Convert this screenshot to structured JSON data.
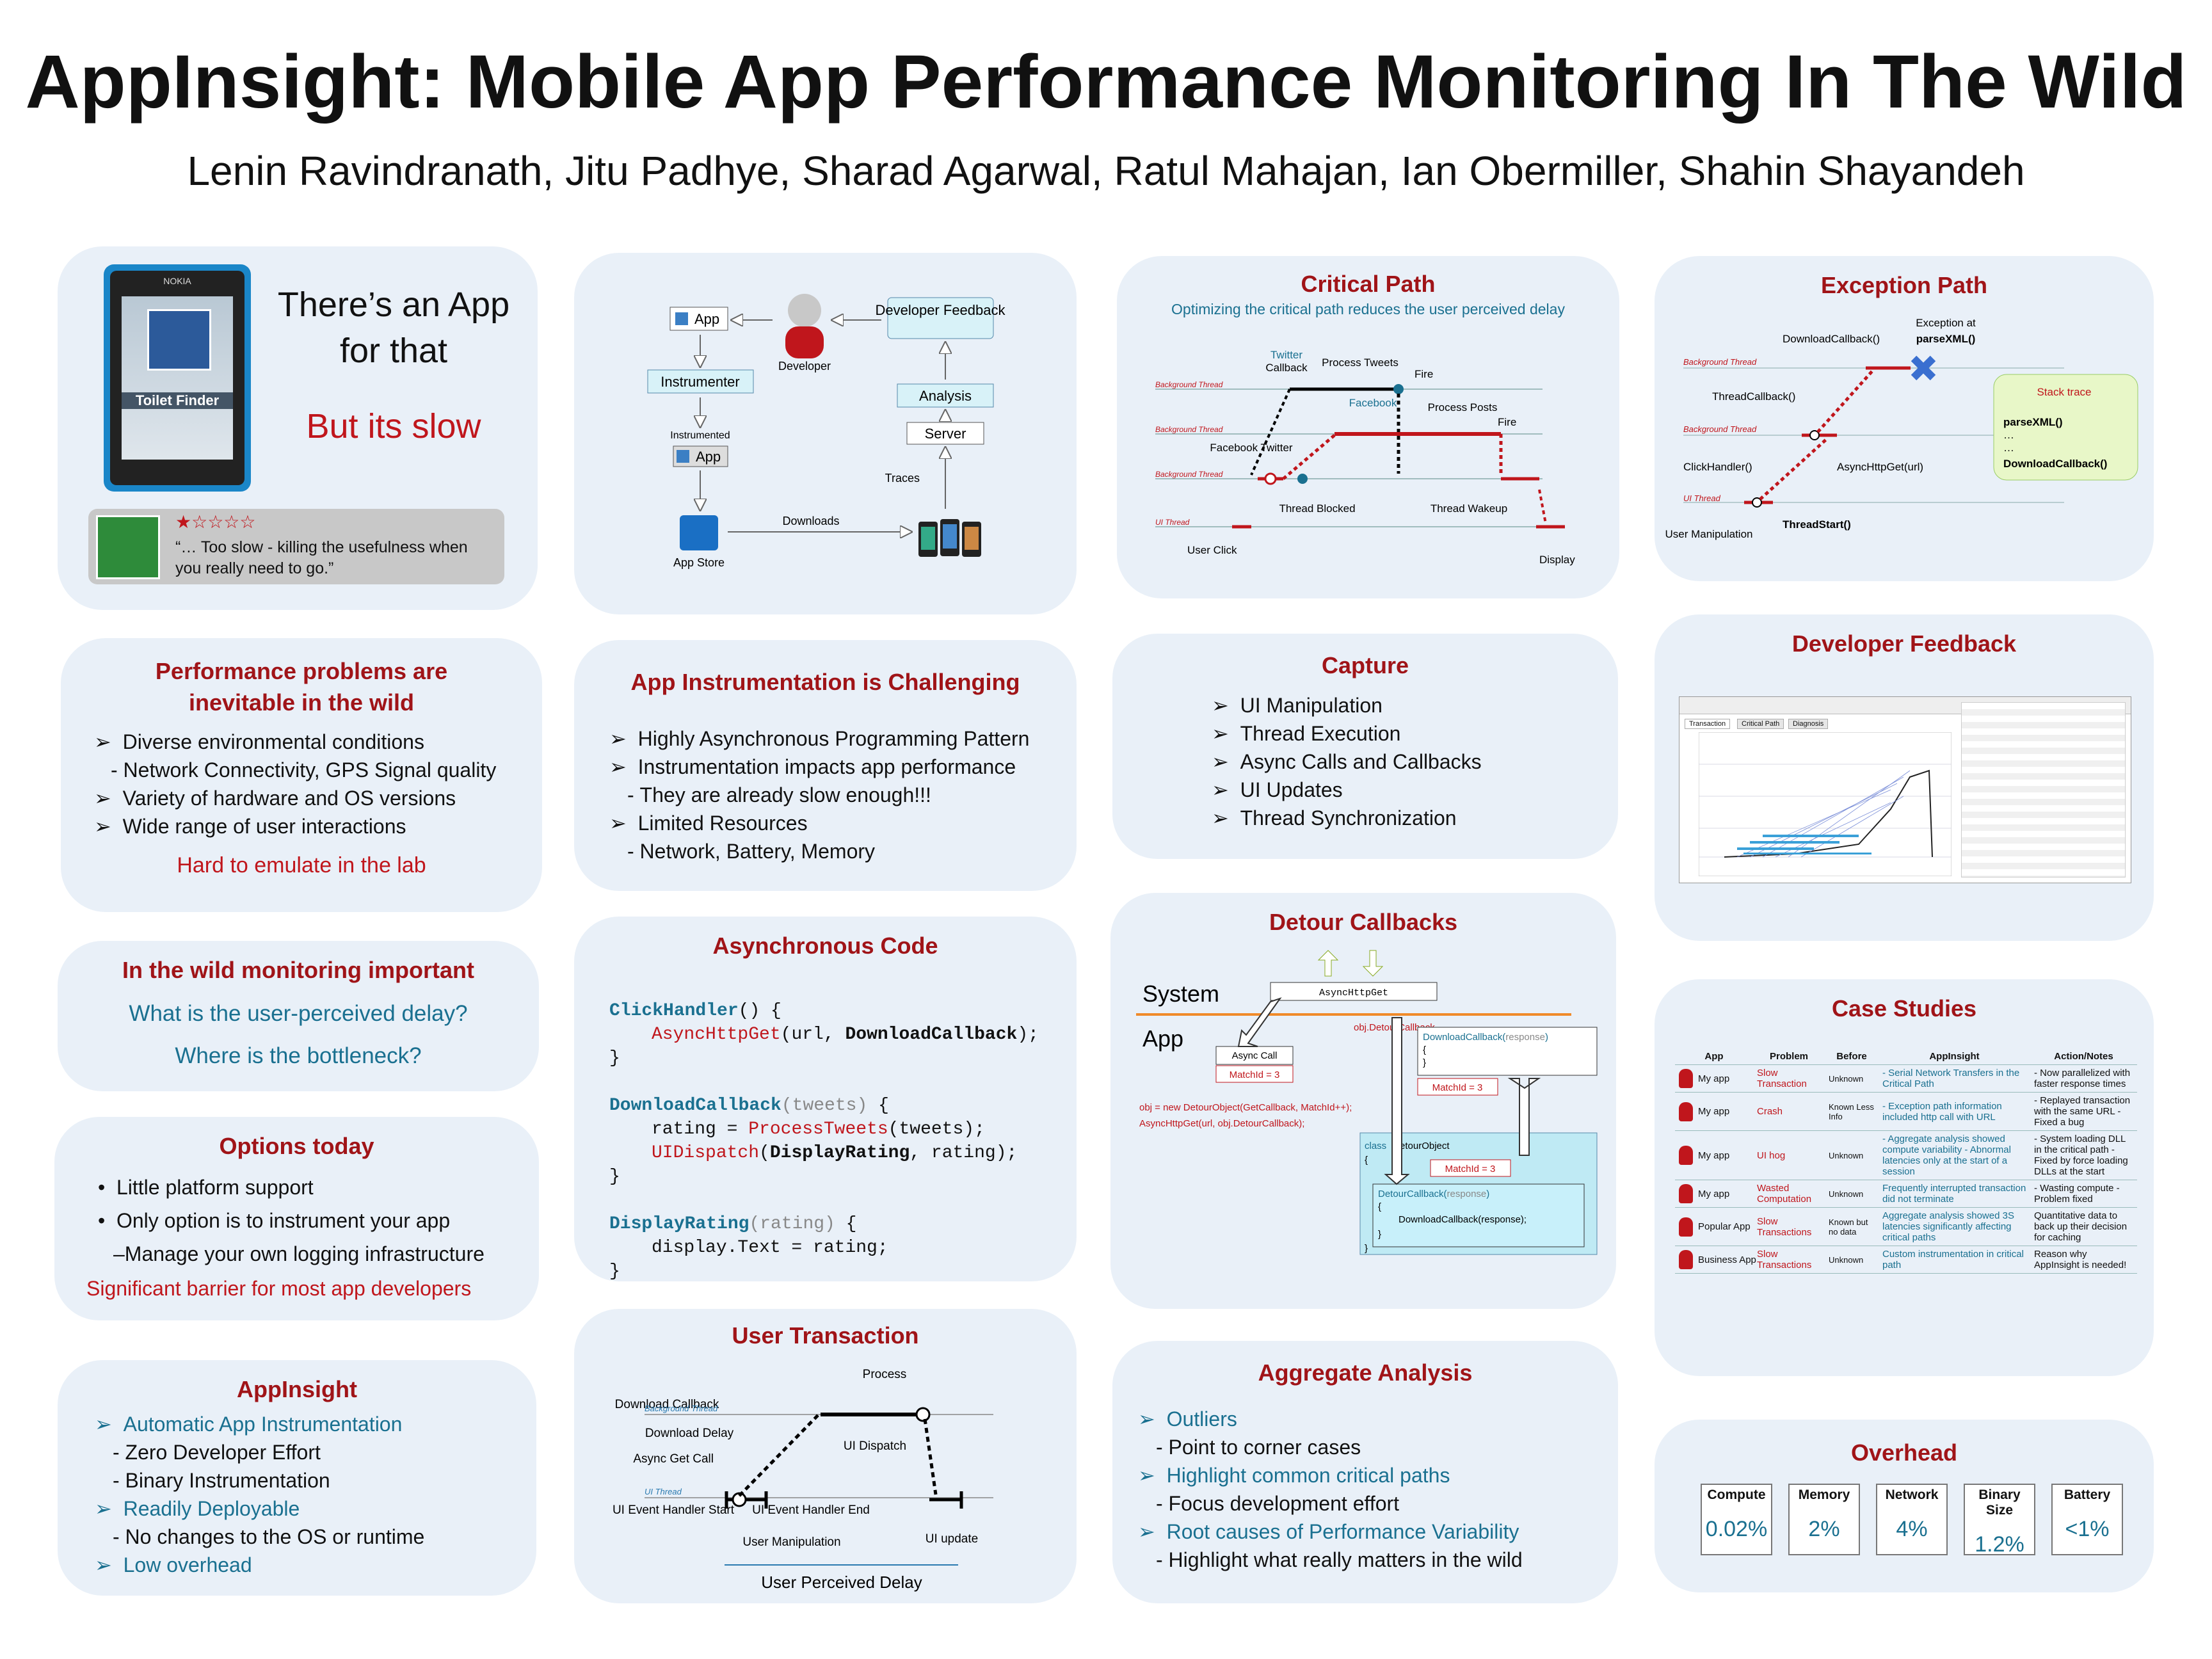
{
  "header": {
    "title": "AppInsight: Mobile App Performance Monitoring In The Wild",
    "authors": "Lenin Ravindranath, Jitu Padhye, Sharad Agarwal, Ratul Mahajan, Ian Obermiller, Shahin Shayandeh"
  },
  "intro": {
    "phone_brand": "NOKIA",
    "app_name": "Toilet Finder",
    "tagline_1": "There’s an App",
    "tagline_2": "for that",
    "tagline_3": "But its slow",
    "stars": "★☆☆☆☆",
    "review": "“… Too slow - killing the usefulness when you really need to go.”"
  },
  "pipeline": {
    "app": "App",
    "developer": "Developer",
    "feedback": "Developer Feedback",
    "instrumenter": "Instrumenter",
    "instrumented": "Instrumented",
    "instr_app": "App",
    "analysis": "Analysis",
    "server": "Server",
    "traces": "Traces",
    "downloads": "Downloads",
    "app_store": "App Store"
  },
  "critical_path": {
    "title": "Critical Path",
    "subtitle": "Optimizing the critical path reduces the user perceived delay",
    "bg_thread": "Background Thread",
    "ui_thread": "UI Thread",
    "twitter": "Twitter",
    "callback": "Callback",
    "process_tweets": "Process Tweets",
    "fire": "Fire",
    "facebook": "Facebook",
    "process_posts": "Process Posts",
    "facebook_twitter": "Facebook Twitter",
    "thread_blocked": "Thread Blocked",
    "thread_wakeup": "Thread Wakeup",
    "user_click": "User Click",
    "display": "Display"
  },
  "exception_path": {
    "title": "Exception Path",
    "download_callback": "DownloadCallback()",
    "exception_at": "Exception at",
    "parse_xml": "parseXML()",
    "bg_thread": "Background Thread",
    "thread_callback": "ThreadCallback()",
    "async_http": "AsyncHttpGet(url)",
    "click_handler": "ClickHandler()",
    "ui_thread": "UI Thread",
    "thread_start": "ThreadStart()",
    "user_manip": "User Manipulation",
    "stack_title": "Stack trace",
    "stack_1": "parseXML()",
    "stack_2": "…",
    "stack_3": "…",
    "stack_4": "DownloadCallback()"
  },
  "perf_problems": {
    "title": "Performance problems are inevitable in the wild",
    "items": [
      {
        "bullet": "➢",
        "text": "Diverse environmental conditions"
      },
      {
        "bullet": "-",
        "text": "Network Connectivity, GPS Signal quality"
      },
      {
        "bullet": "➢",
        "text": "Variety of hardware and OS versions"
      },
      {
        "bullet": "➢",
        "text": "Wide range of user interactions"
      }
    ],
    "footer": "Hard to emulate in the lab"
  },
  "instrumentation": {
    "title": "App Instrumentation is Challenging",
    "items": [
      {
        "bullet": "➢",
        "text": "Highly Asynchronous Programming Pattern"
      },
      {
        "bullet": "➢",
        "text": "Instrumentation impacts app performance"
      },
      {
        "bullet": "-",
        "text": "They are already slow enough!!!"
      },
      {
        "bullet": "➢",
        "text": "Limited Resources"
      },
      {
        "bullet": "-",
        "text": "Network, Battery, Memory"
      }
    ]
  },
  "capture": {
    "title": "Capture",
    "items": [
      "UI Manipulation",
      "Thread Execution",
      "Async Calls and Callbacks",
      "UI Updates",
      "Thread Synchronization"
    ]
  },
  "dev_feedback": {
    "title": "Developer Feedback",
    "tab_1": "Transaction",
    "tab_2": "Critical Path",
    "tab_3": "Diagnosis"
  },
  "wild_monitoring": {
    "title": "In the wild monitoring important",
    "q1": "What is the user-perceived delay?",
    "q2": "Where is the bottleneck?"
  },
  "async_code": {
    "title": "Asynchronous Code",
    "l1a": "ClickHandler",
    "l1b": "() {",
    "l2a": "AsyncHttpGet",
    "l2b": "(url, ",
    "l2c": "DownloadCallback",
    "l2d": ");",
    "l3": "}",
    "l4a": "DownloadCallback",
    "l4b": "(tweets)",
    "l4c": " {",
    "l5a": "rating = ",
    "l5b": "ProcessTweets",
    "l5c": "(tweets);",
    "l6a": "UIDispatch",
    "l6b": "(",
    "l6c": "DisplayRating",
    "l6d": ", rating);",
    "l7": "}",
    "l8a": "DisplayRating",
    "l8b": "(rating)",
    "l8c": " {",
    "l9": "display.Text = rating;",
    "l10": "}"
  },
  "options": {
    "title": "Options today",
    "items": [
      {
        "bullet": "•",
        "text": "Little platform support"
      },
      {
        "bullet": "•",
        "text": "Only option is to instrument your app"
      },
      {
        "bullet": "–",
        "text": "Manage your own logging infrastructure"
      }
    ],
    "footer": "Significant barrier for most app developers"
  },
  "detour": {
    "title": "Detour Callbacks",
    "system": "System",
    "app": "App",
    "async_get": "AsyncHttpGet",
    "obj_detour": "obj.DetourCallback",
    "async_call": "Async Call",
    "matchid": "MatchId = 3",
    "dl_callback": "DownloadCallback(",
    "response": "response",
    "close_paren": ")",
    "brace_open": "{",
    "brace_close": "}",
    "code_1": "obj = new DetourObject(GetCallback, MatchId++);",
    "code_2": "AsyncHttpGet(url, obj.DetourCallback);",
    "class_kw": "class",
    "detour_object": "DetourObject",
    "detour_cb": "DetourCallback(",
    "detour_body": "DownloadCallback(response);"
  },
  "case_studies": {
    "title": "Case Studies",
    "headers": [
      "App",
      "Problem",
      "Before",
      "AppInsight",
      "Action/Notes"
    ],
    "rows": [
      {
        "app": "My app",
        "problem": "Slow Transaction",
        "before": "Unknown",
        "insight": "- Serial Network Transfers in the Critical Path",
        "notes": "- Now parallelized with faster response times"
      },
      {
        "app": "My app",
        "problem": "Crash",
        "before": "Known Less Info",
        "insight": "- Exception path information included http call with URL",
        "notes": "- Replayed transaction with the same URL - Fixed a bug"
      },
      {
        "app": "My app",
        "problem": "UI hog",
        "before": "Unknown",
        "insight": "- Aggregate analysis showed compute variability - Abnormal latencies only at the start of a session",
        "notes": "- System loading DLL in the critical path - Fixed by force loading DLLs at the start"
      },
      {
        "app": "My app",
        "problem": "Wasted Computation",
        "before": "Unknown",
        "insight": "Frequently interrupted transaction did not terminate",
        "notes": "- Wasting compute - Problem fixed"
      },
      {
        "app": "Popular App",
        "problem": "Slow Transactions",
        "before": "Known but no data",
        "insight": "Aggregate analysis showed 3S latencies significantly affecting critical paths",
        "notes": "Quantitative data to back up their decision for caching"
      },
      {
        "app": "Business App",
        "problem": "Slow Transactions",
        "before": "Unknown",
        "insight": "Custom instrumentation in critical path",
        "notes": "Reason why AppInsight is needed!"
      }
    ]
  },
  "appinsight": {
    "title": "AppInsight",
    "items": [
      {
        "bullet": "➢",
        "text": "Automatic App Instrumentation",
        "kind": "head"
      },
      {
        "bullet": "-",
        "text": "Zero Developer Effort",
        "kind": "sub"
      },
      {
        "bullet": "-",
        "text": "Binary Instrumentation",
        "kind": "sub"
      },
      {
        "bullet": "➢",
        "text": "Readily Deployable",
        "kind": "head"
      },
      {
        "bullet": "-",
        "text": "No changes to the OS or runtime",
        "kind": "sub"
      },
      {
        "bullet": "➢",
        "text": "Low overhead",
        "kind": "head"
      }
    ]
  },
  "user_transaction": {
    "title": "User Transaction",
    "download_callback": "Download Callback",
    "process": "Process",
    "bg_thread": "Background Thread",
    "download_delay": "Download Delay",
    "ui_dispatch": "UI Dispatch",
    "async_get_call": "Async Get Call",
    "ui_thread": "UI Thread",
    "ui_event_start": "UI Event Handler Start",
    "ui_event_end": "UI Event Handler End",
    "user_manip": "User Manipulation",
    "ui_update": "UI update",
    "perceived": "User Perceived Delay"
  },
  "aggregate": {
    "title": "Aggregate Analysis",
    "items": [
      {
        "bullet": "➢",
        "text": "Outliers",
        "kind": "head"
      },
      {
        "bullet": "-",
        "text": "Point to corner cases",
        "kind": "sub"
      },
      {
        "bullet": "➢",
        "text": "Highlight common critical paths",
        "kind": "head"
      },
      {
        "bullet": "-",
        "text": "Focus development effort",
        "kind": "sub"
      },
      {
        "bullet": "➢",
        "text": "Root causes of Performance Variability",
        "kind": "head"
      },
      {
        "bullet": "-",
        "text": "Highlight what really matters in the wild",
        "kind": "sub"
      }
    ]
  },
  "overhead": {
    "title": "Overhead",
    "items": [
      {
        "label": "Compute",
        "value": "0.02%"
      },
      {
        "label": "Memory",
        "value": "2%"
      },
      {
        "label": "Network",
        "value": "4%"
      },
      {
        "label": "Binary Size",
        "value": "1.2%"
      },
      {
        "label": "Battery",
        "value": "<1%"
      }
    ]
  },
  "colors": {
    "heading_red": "#a01418",
    "accent_teal": "#1a7090",
    "panel_bg": "#e9f0f8"
  }
}
